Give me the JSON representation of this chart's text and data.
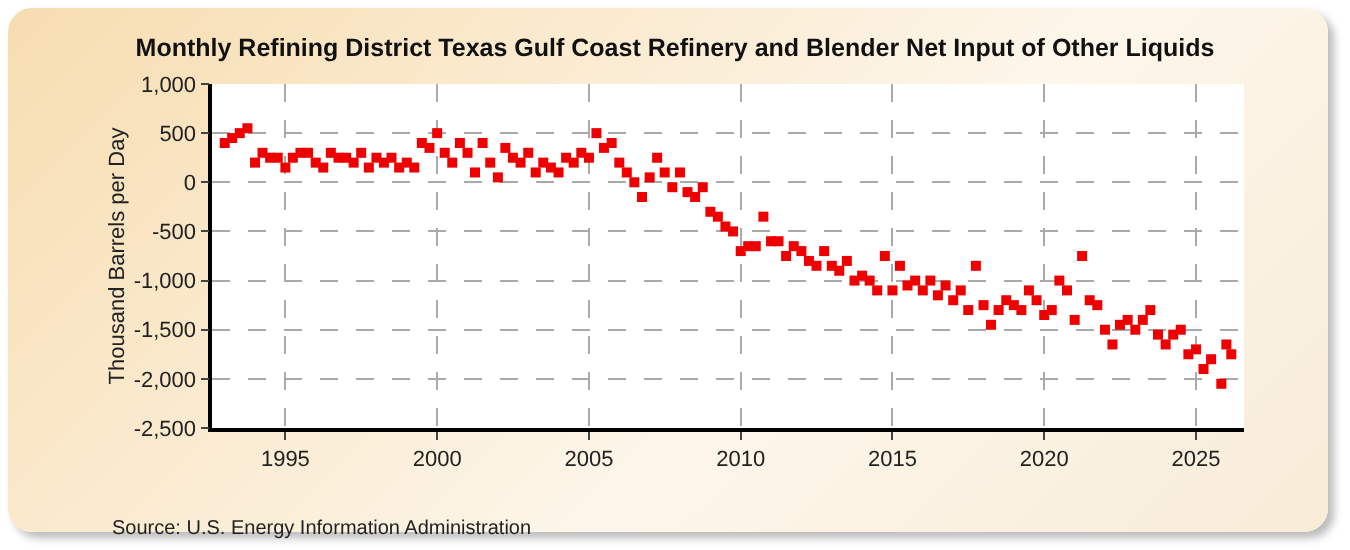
{
  "chart_data": {
    "type": "scatter",
    "title": "Monthly Refining District Texas Gulf Coast Refinery and Blender Net Input of Other Liquids",
    "ylabel": "Thousand Barrels per Day",
    "annotations": [
      "Source: U.S. Energy Information Administration"
    ],
    "x": [
      "1993-01",
      "1993-04",
      "1993-07",
      "1993-10",
      "1994-01",
      "1994-04",
      "1994-07",
      "1994-10",
      "1995-01",
      "1995-04",
      "1995-07",
      "1995-10",
      "1996-01",
      "1996-04",
      "1996-07",
      "1996-10",
      "1997-01",
      "1997-04",
      "1997-07",
      "1997-10",
      "1998-01",
      "1998-04",
      "1998-07",
      "1998-10",
      "1999-01",
      "1999-04",
      "1999-07",
      "1999-10",
      "2000-01",
      "2000-04",
      "2000-07",
      "2000-10",
      "2001-01",
      "2001-04",
      "2001-07",
      "2001-10",
      "2002-01",
      "2002-04",
      "2002-07",
      "2002-10",
      "2003-01",
      "2003-04",
      "2003-07",
      "2003-10",
      "2004-01",
      "2004-04",
      "2004-07",
      "2004-10",
      "2005-01",
      "2005-04",
      "2005-07",
      "2005-10",
      "2006-01",
      "2006-04",
      "2006-07",
      "2006-10",
      "2007-01",
      "2007-04",
      "2007-07",
      "2007-10",
      "2008-01",
      "2008-04",
      "2008-07",
      "2008-10",
      "2009-01",
      "2009-04",
      "2009-07",
      "2009-10",
      "2010-01",
      "2010-04",
      "2010-07",
      "2010-10",
      "2011-01",
      "2011-04",
      "2011-07",
      "2011-10",
      "2012-01",
      "2012-04",
      "2012-07",
      "2012-10",
      "2013-01",
      "2013-04",
      "2013-07",
      "2013-10",
      "2014-01",
      "2014-04",
      "2014-07",
      "2014-10",
      "2015-01",
      "2015-04",
      "2015-07",
      "2015-10",
      "2016-01",
      "2016-04",
      "2016-07",
      "2016-10",
      "2017-01",
      "2017-04",
      "2017-07",
      "2017-10",
      "2018-01",
      "2018-04",
      "2018-07",
      "2018-10",
      "2019-01",
      "2019-04",
      "2019-07",
      "2019-10",
      "2020-01",
      "2020-04",
      "2020-07",
      "2020-10",
      "2021-01",
      "2021-04",
      "2021-07",
      "2021-10",
      "2022-01",
      "2022-04",
      "2022-07",
      "2022-10",
      "2023-01",
      "2023-04",
      "2023-07",
      "2023-10",
      "2024-01",
      "2024-04",
      "2024-07",
      "2024-10",
      "2025-01",
      "2025-04",
      "2025-07",
      "2025-11",
      "2026-01",
      "2026-03"
    ],
    "series": [
      {
        "color": "#ee0000",
        "values": [
          400,
          450,
          500,
          550,
          200,
          300,
          250,
          250,
          150,
          250,
          300,
          300,
          200,
          150,
          300,
          250,
          250,
          200,
          300,
          150,
          250,
          200,
          250,
          150,
          200,
          150,
          400,
          350,
          500,
          300,
          200,
          400,
          300,
          100,
          400,
          200,
          50,
          350,
          250,
          200,
          300,
          100,
          200,
          150,
          100,
          250,
          200,
          300,
          250,
          500,
          350,
          400,
          200,
          100,
          0,
          -150,
          50,
          250,
          100,
          -50,
          100,
          -100,
          -150,
          -50,
          -300,
          -350,
          -450,
          -500,
          -700,
          -650,
          -650,
          -350,
          -600,
          -600,
          -750,
          -650,
          -700,
          -800,
          -850,
          -700,
          -850,
          -900,
          -800,
          -1000,
          -950,
          -1000,
          -1100,
          -750,
          -1100,
          -850,
          -1050,
          -1000,
          -1100,
          -1000,
          -1150,
          -1050,
          -1200,
          -1100,
          -1300,
          -850,
          -1250,
          -1450,
          -1300,
          -1200,
          -1250,
          -1300,
          -1100,
          -1200,
          -1350,
          -1300,
          -1000,
          -1100,
          -1400,
          -750,
          -1200,
          -1250,
          -1500,
          -1650,
          -1450,
          -1400,
          -1500,
          -1400,
          -1300,
          -1550,
          -1650,
          -1550,
          -1500,
          -1750,
          -1700,
          -1900,
          -1800,
          -2050,
          -1650,
          -1750
        ]
      }
    ],
    "xlim": [
      "1992-08",
      "2026-08"
    ],
    "xticks": [
      {
        "value": "1995-01",
        "label": "1995"
      },
      {
        "value": "2000-01",
        "label": "2000"
      },
      {
        "value": "2005-01",
        "label": "2005"
      },
      {
        "value": "2010-01",
        "label": "2010"
      },
      {
        "value": "2015-01",
        "label": "2015"
      },
      {
        "value": "2020-01",
        "label": "2020"
      },
      {
        "value": "2025-01",
        "label": "2025"
      }
    ],
    "ylim": [
      -2500,
      1000
    ],
    "yticks": [
      {
        "value": -2500,
        "label": "-2,500"
      },
      {
        "value": -2000,
        "label": "-2,000"
      },
      {
        "value": -1500,
        "label": "-1,500"
      },
      {
        "value": -1000,
        "label": "-1,000"
      },
      -500,
      0,
      500,
      {
        "value": 1000,
        "label": "1,000"
      }
    ],
    "grid": true,
    "marker": "square"
  }
}
